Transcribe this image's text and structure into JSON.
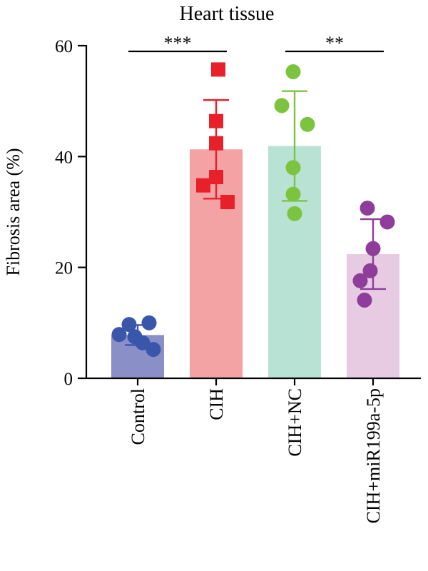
{
  "chart_data": {
    "type": "bar",
    "title": "Heart tissue",
    "xlabel": "",
    "ylabel": "Fibrosis area (%)",
    "ylim": [
      0,
      60
    ],
    "yticks": [
      0,
      20,
      40,
      60
    ],
    "grid": false,
    "categories": [
      "Control",
      "CIH",
      "CIH+NC",
      "CIH+miR199a-5p"
    ],
    "means": [
      7.8,
      41.3,
      41.9,
      22.4
    ],
    "sd": [
      1.8,
      8.9,
      9.9,
      6.3
    ],
    "points": [
      [
        9.7,
        10.0,
        7.9,
        7.5,
        6.4,
        5.2
      ],
      [
        55.7,
        46.4,
        42.4,
        36.3,
        34.8,
        31.8
      ],
      [
        55.3,
        49.2,
        45.8,
        38.0,
        33.2,
        29.7
      ],
      [
        30.7,
        28.2,
        23.4,
        19.4,
        17.6,
        14.1
      ]
    ],
    "bar_colors": [
      "#8b8fc8",
      "#f4a3a5",
      "#b7e2d4",
      "#e6cbe3"
    ],
    "point_colors": [
      "#3a56ab",
      "#e8202a",
      "#7cc440",
      "#8e3d9a"
    ],
    "point_shapes": [
      "circle",
      "square",
      "circle",
      "circle"
    ],
    "significance": [
      {
        "from": "Control",
        "to": "CIH",
        "label": "***"
      },
      {
        "from": "CIH+NC",
        "to": "CIH+miR199a-5p",
        "label": "**"
      }
    ]
  }
}
